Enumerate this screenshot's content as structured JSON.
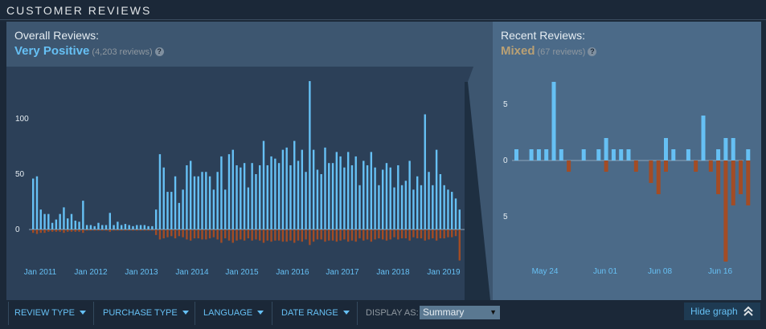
{
  "header": {
    "title": "CUSTOMER REVIEWS"
  },
  "overall": {
    "label": "Overall Reviews:",
    "summary": "Very Positive",
    "count": "(4,203 reviews)",
    "help": "?"
  },
  "recent": {
    "label": "Recent Reviews:",
    "summary": "Mixed",
    "count": "(67 reviews)",
    "help": "?"
  },
  "filters": {
    "review_type": "REVIEW TYPE",
    "purchase_type": "PURCHASE TYPE",
    "language": "LANGUAGE",
    "date_range": "DATE RANGE",
    "display_as": "DISPLAY AS:",
    "display_value": "Summary"
  },
  "hide_graph": "Hide graph",
  "colors": {
    "positive": "#66c0f4",
    "negative": "#a34c25",
    "accent": "#66c0f4",
    "mixed": "#b9a074"
  },
  "chart_data": [
    {
      "type": "bar",
      "xticks": [
        "Jan 2011",
        "Jan 2012",
        "Jan 2013",
        "Jan 2014",
        "Jan 2015",
        "Jan 2016",
        "Jan 2017",
        "Jan 2018",
        "Jan 2019"
      ],
      "yticks": [
        "100",
        "50",
        "0"
      ],
      "ylim": [
        -30,
        135
      ],
      "positive": [
        46,
        48,
        18,
        14,
        14,
        6,
        9,
        14,
        20,
        10,
        14,
        8,
        7,
        26,
        4,
        4,
        3,
        6,
        4,
        4,
        15,
        4,
        7,
        4,
        5,
        4,
        3,
        4,
        4,
        4,
        3,
        3,
        18,
        68,
        56,
        34,
        34,
        48,
        24,
        36,
        58,
        62,
        48,
        48,
        52,
        52,
        48,
        36,
        52,
        66,
        36,
        68,
        72,
        58,
        56,
        60,
        38,
        60,
        50,
        58,
        80,
        58,
        66,
        64,
        60,
        72,
        74,
        58,
        80,
        62,
        72,
        52,
        134,
        72,
        54,
        50,
        74,
        60,
        60,
        70,
        66,
        56,
        70,
        58,
        66,
        40,
        62,
        58,
        70,
        56,
        40,
        54,
        60,
        56,
        38,
        58,
        40,
        44,
        62,
        36,
        48,
        40,
        104,
        52,
        40,
        72,
        50,
        40,
        36,
        34,
        28,
        18
      ],
      "negative": [
        -3,
        -4,
        -3,
        -3,
        -2,
        -2,
        -2,
        -2,
        -3,
        -2,
        -2,
        -2,
        -2,
        -3,
        -1,
        -1,
        -1,
        -1,
        -1,
        -1,
        -2,
        -1,
        -1,
        -1,
        -1,
        -1,
        -1,
        -1,
        -1,
        -1,
        -1,
        -1,
        -5,
        -9,
        -8,
        -7,
        -6,
        -8,
        -6,
        -7,
        -9,
        -10,
        -8,
        -8,
        -9,
        -9,
        -8,
        -7,
        -9,
        -12,
        -8,
        -10,
        -12,
        -10,
        -9,
        -10,
        -8,
        -10,
        -9,
        -10,
        -12,
        -10,
        -11,
        -10,
        -10,
        -11,
        -11,
        -10,
        -12,
        -10,
        -11,
        -9,
        -14,
        -11,
        -9,
        -9,
        -11,
        -10,
        -10,
        -11,
        -10,
        -9,
        -11,
        -10,
        -11,
        -8,
        -10,
        -9,
        -11,
        -9,
        -8,
        -9,
        -10,
        -9,
        -7,
        -9,
        -8,
        -8,
        -10,
        -7,
        -8,
        -8,
        -10,
        -9,
        -8,
        -10,
        -8,
        -8,
        -7,
        -7,
        -6,
        -28
      ]
    },
    {
      "type": "bar",
      "xticks": [
        "May 24",
        "Jun 01",
        "Jun 08",
        "Jun 16"
      ],
      "yticks": [
        "5",
        "0",
        "5"
      ],
      "ylim": [
        -9,
        7
      ],
      "positive": [
        1,
        0,
        1,
        1,
        1,
        7,
        1,
        0,
        0,
        1,
        0,
        1,
        2,
        1,
        1,
        1,
        0,
        0,
        0,
        0,
        2,
        1,
        0,
        1,
        0,
        4,
        0,
        1,
        2,
        2,
        0,
        1
      ],
      "negative": [
        0,
        0,
        0,
        0,
        0,
        0,
        0,
        -1,
        0,
        0,
        0,
        0,
        -1,
        0,
        0,
        0,
        -1,
        0,
        -2,
        -3,
        -1,
        0,
        0,
        0,
        -1,
        0,
        -1,
        -3,
        -9,
        -4,
        -3,
        -4
      ]
    }
  ]
}
